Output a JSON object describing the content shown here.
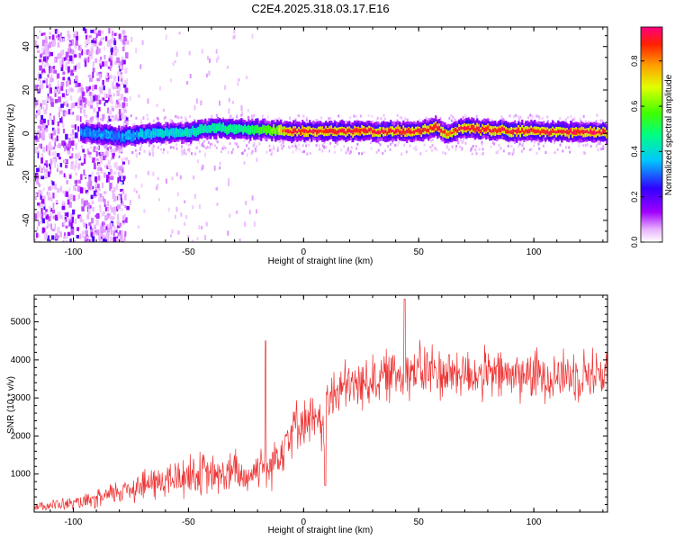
{
  "title": "C2E4.2025.318.03.17.E16",
  "chart_data": [
    {
      "type": "heatmap",
      "xlabel": "Height of straight line (km)",
      "ylabel": "Frequency (Hz)",
      "xlim": [
        -117,
        132
      ],
      "ylim": [
        -50,
        49
      ],
      "x_ticks": [
        -100,
        -50,
        0,
        50,
        100
      ],
      "x_tick_labels": [
        "-100",
        "-50",
        "0",
        "50",
        "100"
      ],
      "y_ticks": [
        -40,
        -20,
        0,
        20,
        40
      ],
      "y_tick_labels": [
        "-40",
        "-20",
        "0",
        "20",
        "40"
      ],
      "colorbar": {
        "label": "Normalized spectral amplitude",
        "range": [
          0,
          0.95
        ],
        "ticks": [
          0,
          0.2,
          0.4,
          0.6,
          0.8
        ],
        "tick_labels": [
          "0.0",
          "0.2",
          "0.4",
          "0.6",
          "0.8"
        ],
        "colormap": "rainbow (white-violet-blue-cyan-green-yellow-red)"
      },
      "band": [
        {
          "x": -95,
          "freq": 0.5,
          "amplitude": 0.32
        },
        {
          "x": -80,
          "freq": -1.5,
          "amplitude": 0.33
        },
        {
          "x": -65,
          "freq": 0.0,
          "amplitude": 0.38
        },
        {
          "x": -50,
          "freq": 0.5,
          "amplitude": 0.42
        },
        {
          "x": -40,
          "freq": 2.5,
          "amplitude": 0.45
        },
        {
          "x": -25,
          "freq": 2.0,
          "amplitude": 0.48
        },
        {
          "x": -12,
          "freq": 1.5,
          "amplitude": 0.62
        },
        {
          "x": -8,
          "freq": 1.0,
          "amplitude": 0.9
        },
        {
          "x": 20,
          "freq": 1.0,
          "amplitude": 0.9
        },
        {
          "x": 50,
          "freq": 1.0,
          "amplitude": 0.9
        },
        {
          "x": 58,
          "freq": 3.0,
          "amplitude": 0.9
        },
        {
          "x": 62,
          "freq": -1.0,
          "amplitude": 0.85
        },
        {
          "x": 68,
          "freq": 2.5,
          "amplitude": 0.9
        },
        {
          "x": 90,
          "freq": 1.0,
          "amplitude": 0.9
        },
        {
          "x": 132,
          "freq": 0.5,
          "amplitude": 0.9
        }
      ]
    },
    {
      "type": "line",
      "xlabel": "Height of straight line (km)",
      "ylabel": "SNR (10 * v/v)",
      "xlim": [
        -117,
        132
      ],
      "ylim": [
        0,
        5700
      ],
      "x_ticks": [
        -100,
        -50,
        0,
        50,
        100
      ],
      "x_tick_labels": [
        "-100",
        "-50",
        "0",
        "50",
        "100"
      ],
      "y_ticks": [
        1000,
        2000,
        3000,
        4000,
        5000
      ],
      "y_tick_labels": [
        "1000",
        "2000",
        "3000",
        "4000",
        "5000"
      ],
      "color": "#ee3333",
      "series": [
        {
          "x": [
            -117,
            -110,
            -100,
            -95,
            -90,
            -85,
            -80,
            -75,
            -70,
            -65,
            -60,
            -55,
            -50,
            -45,
            -40,
            -35,
            -30,
            -25,
            -20,
            -18,
            -16,
            -12,
            -8,
            -5,
            -2,
            0,
            3,
            6,
            8,
            10,
            12,
            15,
            20,
            25,
            30,
            35,
            40,
            45,
            50,
            55,
            60,
            65,
            70,
            75,
            80,
            85,
            90,
            95,
            100,
            105,
            110,
            115,
            120,
            125,
            132
          ],
          "values": [
            150,
            180,
            220,
            260,
            320,
            420,
            550,
            650,
            700,
            760,
            820,
            880,
            980,
            1000,
            960,
            950,
            1050,
            900,
            1150,
            1400,
            1050,
            1450,
            1900,
            2200,
            2350,
            2400,
            2400,
            2300,
            2150,
            2600,
            3000,
            3200,
            3300,
            3350,
            3500,
            3550,
            3650,
            3700,
            3700,
            3700,
            3650,
            3650,
            3650,
            3600,
            3600,
            3600,
            3600,
            3600,
            3600,
            3600,
            3600,
            3600,
            3650,
            3650,
            3650
          ],
          "spread": [
            150,
            160,
            180,
            200,
            250,
            300,
            350,
            400,
            450,
            480,
            500,
            550,
            650,
            600,
            550,
            500,
            650,
            500,
            500,
            600,
            600,
            650,
            800,
            700,
            650,
            600,
            700,
            700,
            700,
            800,
            800,
            750,
            700,
            700,
            700,
            700,
            700,
            750,
            750,
            800,
            750,
            700,
            700,
            700,
            700,
            700,
            700,
            700,
            700,
            700,
            700,
            700,
            700,
            700,
            700
          ],
          "annotations": [
            {
              "x": -16.5,
              "value": 4500
            },
            {
              "x": 9.5,
              "value": 700
            },
            {
              "x": 44,
              "value": 5600
            }
          ]
        }
      ]
    }
  ]
}
